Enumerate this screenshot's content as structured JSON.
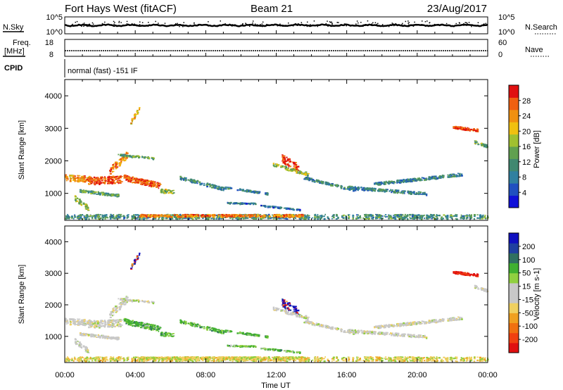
{
  "header": {
    "radar": "Fort Hays West (fitACF)",
    "beam": "Beam 21",
    "date": "23/Aug/2017"
  },
  "strips": {
    "nsky_label": "N.Sky",
    "nsky_ticks": [
      "10^5",
      "10^0"
    ],
    "nsearch_label": "N.Search",
    "nsearch_ticks": [
      "10^5",
      "10^0"
    ],
    "freq_label": "Freq.",
    "freq_unit": "[MHz]",
    "freq_ticks": [
      "18",
      "8"
    ],
    "nave_label": "Nave",
    "nave_ticks": [
      "60",
      "0"
    ],
    "cpid_label": "CPID",
    "cpid_text": "normal (fast) -151 IF"
  },
  "colors": {
    "power": [
      "#1010d8",
      "#2050c0",
      "#3080a0",
      "#408870",
      "#60a050",
      "#a0c030",
      "#f0c010",
      "#f09010",
      "#f06010",
      "#e01010"
    ],
    "velocity": [
      "#e01010",
      "#f04010",
      "#f07010",
      "#f0a020",
      "#f0d060",
      "#c8c8c8",
      "#c8c8c8",
      "#90d040",
      "#40b030",
      "#307060",
      "#2040a0",
      "#1010c0"
    ]
  },
  "chart_data": [
    {
      "type": "heatmap",
      "name": "power",
      "ylabel": "Slant Range [km]",
      "yticks": [
        "1000",
        "2000",
        "3000",
        "4000"
      ],
      "ylim": [
        170,
        4500
      ],
      "xlim": [
        0,
        24
      ],
      "xticks": [
        "00:00",
        "04:00",
        "08:00",
        "12:00",
        "16:00",
        "20:00",
        "00:00"
      ],
      "colorbar_label": "Power [dB]",
      "colorbar_ticks": [
        "4",
        "8",
        "12",
        "16",
        "20",
        "24",
        "28"
      ],
      "colorbar_range": [
        0,
        30
      ]
    },
    {
      "type": "heatmap",
      "name": "velocity",
      "ylabel": "Slant Range [km]",
      "yticks": [
        "1000",
        "2000",
        "3000",
        "4000"
      ],
      "ylim": [
        170,
        4500
      ],
      "xlim": [
        0,
        24
      ],
      "xticks": [
        "00:00",
        "04:00",
        "08:00",
        "12:00",
        "16:00",
        "20:00",
        "00:00"
      ],
      "xlabel": "Time UT",
      "colorbar_label": "Velocity [m s-1]",
      "colorbar_ticks": [
        "-200",
        "-100",
        "-50",
        "-15",
        "15",
        "50",
        "100",
        "200"
      ],
      "colorbar_range": [
        -250,
        250
      ]
    }
  ]
}
